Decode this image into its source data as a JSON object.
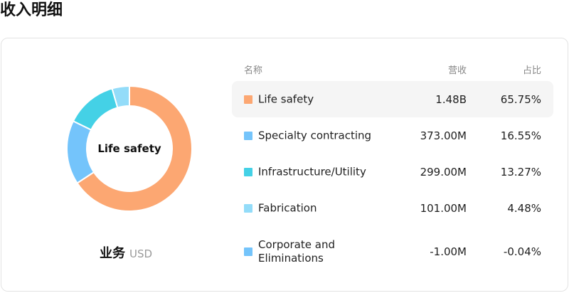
{
  "page": {
    "title": "收入明细"
  },
  "chart": {
    "center_label": "Life safety",
    "caption": "业务",
    "unit": "USD"
  },
  "table": {
    "headers": {
      "name": "名称",
      "revenue": "营收",
      "share": "占比"
    },
    "rows": [
      {
        "name": "Life safety",
        "revenue": "1.48B",
        "share": "65.75%",
        "color": "#fca772",
        "highlighted": true
      },
      {
        "name": "Specialty contracting",
        "revenue": "373.00M",
        "share": "16.55%",
        "color": "#74c4fb",
        "highlighted": false
      },
      {
        "name": "Infrastructure/Utility",
        "revenue": "299.00M",
        "share": "13.27%",
        "color": "#44d1e6",
        "highlighted": false
      },
      {
        "name": "Fabrication",
        "revenue": "101.00M",
        "share": "4.48%",
        "color": "#93dcf9",
        "highlighted": false
      },
      {
        "name": "Corporate and\nEliminations",
        "revenue": "-1.00M",
        "share": "-0.04%",
        "color": "#74c4fb",
        "highlighted": false
      }
    ]
  },
  "chart_data": {
    "type": "pie",
    "donut": true,
    "title": "",
    "categories": [
      "Life safety",
      "Specialty contracting",
      "Infrastructure/Utility",
      "Fabrication",
      "Corporate and Eliminations"
    ],
    "values": [
      65.75,
      16.55,
      13.27,
      4.48,
      -0.04
    ],
    "revenue_usd_millions": [
      1480,
      373,
      299,
      101,
      -1
    ],
    "colors": [
      "#fca772",
      "#74c4fb",
      "#44d1e6",
      "#93dcf9",
      "#74c4fb"
    ],
    "selected": "Life safety"
  }
}
